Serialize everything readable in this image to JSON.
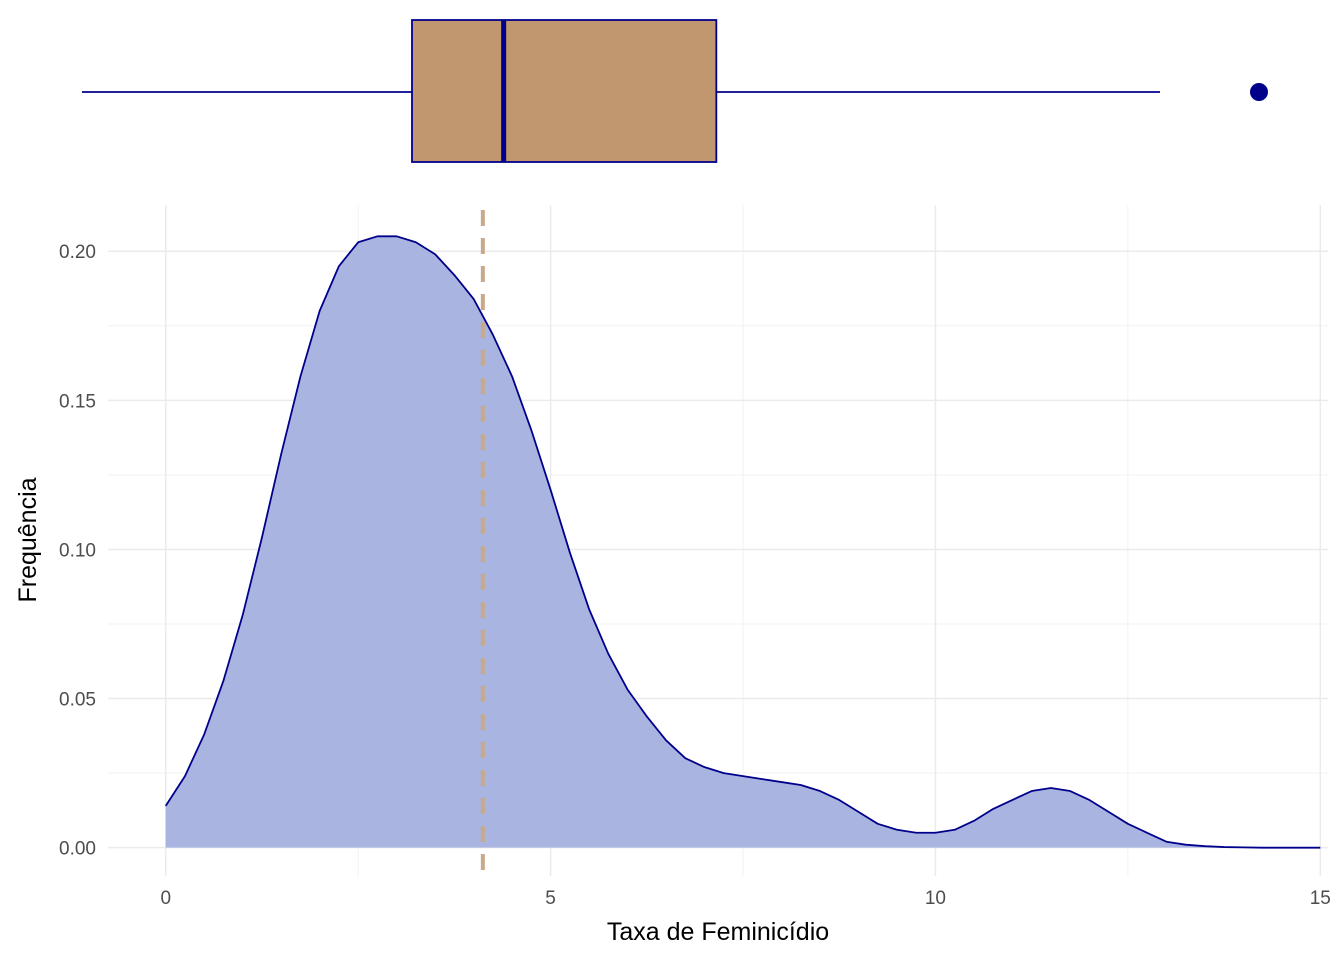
{
  "chart_data": [
    {
      "type": "box",
      "values_summary": {
        "whisker_low": -1.1,
        "q1": 3.4,
        "median": 4.65,
        "q3": 7.55,
        "whisker_high": 13.6,
        "outliers": [
          14.95
        ]
      },
      "fill_color": "#c19770",
      "line_color": "#00008b",
      "xlim": [
        -1.1,
        15.1
      ]
    },
    {
      "type": "area",
      "xlabel": "Taxa de Feminicídio",
      "ylabel": "Frequência",
      "xlim": [
        -0.75,
        15.1
      ],
      "ylim": [
        -0.0095,
        0.2155
      ],
      "x_ticks": [
        0,
        5,
        10,
        15
      ],
      "x_tick_labels": [
        "0",
        "5",
        "10",
        "15"
      ],
      "y_ticks": [
        0,
        0.05,
        0.1,
        0.15,
        0.2
      ],
      "y_tick_labels": [
        "0.00",
        "0.05",
        "0.10",
        "0.15",
        "0.20"
      ],
      "grid": true,
      "fill_color": "#a9b5e0",
      "line_color": "#00008b",
      "mean_line": {
        "x": 4.12,
        "color": "#c9a98b",
        "style": "dashed"
      },
      "series": [
        {
          "x": [
            0,
            0.25,
            0.5,
            0.75,
            1,
            1.25,
            1.5,
            1.75,
            2,
            2.25,
            2.5,
            2.75,
            3,
            3.25,
            3.5,
            3.75,
            4,
            4.25,
            4.5,
            4.75,
            5,
            5.25,
            5.5,
            5.75,
            6,
            6.25,
            6.5,
            6.75,
            7,
            7.25,
            7.5,
            7.75,
            8,
            8.25,
            8.5,
            8.75,
            9,
            9.25,
            9.5,
            9.75,
            10,
            10.25,
            10.5,
            10.75,
            11,
            11.25,
            11.5,
            11.75,
            12,
            12.25,
            12.5,
            12.75,
            13,
            13.25,
            13.5,
            13.75,
            14,
            14.25,
            14.5,
            14.75,
            15
          ],
          "y": [
            0.014,
            0.024,
            0.038,
            0.056,
            0.078,
            0.104,
            0.132,
            0.158,
            0.18,
            0.195,
            0.203,
            0.205,
            0.205,
            0.203,
            0.199,
            0.192,
            0.184,
            0.172,
            0.158,
            0.14,
            0.12,
            0.099,
            0.08,
            0.065,
            0.053,
            0.044,
            0.036,
            0.03,
            0.027,
            0.025,
            0.024,
            0.023,
            0.022,
            0.021,
            0.019,
            0.016,
            0.012,
            0.008,
            0.006,
            0.005,
            0.005,
            0.006,
            0.009,
            0.013,
            0.016,
            0.019,
            0.02,
            0.019,
            0.016,
            0.012,
            0.008,
            0.005,
            0.002,
            0.001,
            0.0005,
            0.0002,
            0.0001,
            0.0,
            0.0,
            0.0,
            0.0
          ]
        }
      ]
    }
  ]
}
